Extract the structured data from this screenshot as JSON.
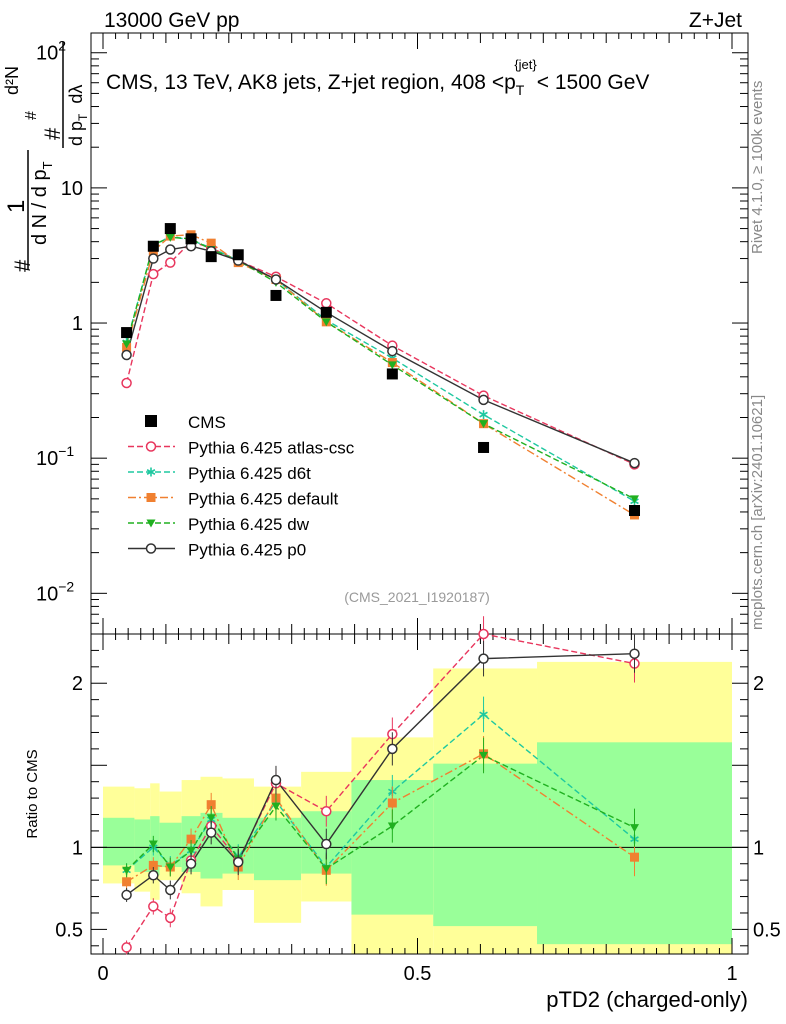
{
  "header": {
    "left": "13000 GeV pp",
    "right": "Z+Jet"
  },
  "side": {
    "rivet": "Rivet 4.1.0, ≥ 100k events",
    "mcplots": "mcplots.cern.ch [arXiv:2401.10621]"
  },
  "chart_data": {
    "type": "line",
    "title": "CMS, 13 TeV, AK8 jets, Z+jet region, 408 <p_T^{jet}< 1500 GeV",
    "title_parts": {
      "pre": "CMS, 13 TeV, AK8 jets, Z+jet region, 408 <p",
      "sub": "T",
      "sup": "{jet}",
      "post": "< 1500 GeV"
    },
    "watermark": "(CMS_2021_I1920187)",
    "xlabel": "pTD2 (charged-only)",
    "ylabel_ratio": "Ratio to CMS",
    "ylabel_main_parts": {
      "hash": "#",
      "one": "1",
      "dN": "d N / d p",
      "T": "T",
      "d2N": "d²N",
      "dpT": "d p",
      "dlambda": "dλ"
    },
    "xlim": [
      0,
      1
    ],
    "ylim_main": [
      0.005,
      140
    ],
    "ylim_ratio": [
      0.35,
      2.3
    ],
    "x_ticks": [
      "0",
      "0.5",
      "1"
    ],
    "y_ticks_main": [
      {
        "v": 0.01,
        "b": "10",
        "e": "−2"
      },
      {
        "v": 0.1,
        "b": "10",
        "e": "−1"
      },
      {
        "v": 1,
        "b": "1",
        "e": ""
      },
      {
        "v": 10,
        "b": "10",
        "e": ""
      },
      {
        "v": 100,
        "b": "10",
        "e": "2"
      }
    ],
    "y_ticks_ratio": [
      {
        "v": 0.5,
        "t": "0.5"
      },
      {
        "v": 1,
        "t": "1"
      },
      {
        "v": 2,
        "t": "2"
      }
    ],
    "x": [
      0.0375,
      0.08,
      0.107,
      0.14,
      0.172,
      0.215,
      0.275,
      0.355,
      0.46,
      0.605,
      0.845
    ],
    "cms": [
      0.85,
      3.7,
      5.0,
      4.2,
      3.1,
      3.2,
      1.6,
      1.2,
      0.42,
      0.12,
      0.041
    ],
    "series": [
      {
        "name": "Pythia 6.425 atlas-csc",
        "color": "#e8365d",
        "marker": "circle-open",
        "dash": "6,3",
        "values": [
          0.36,
          2.3,
          2.8,
          4.0,
          3.6,
          2.9,
          2.2,
          1.4,
          0.68,
          0.29,
          0.09
        ],
        "ratio": [
          0.39,
          0.64,
          0.57,
          0.92,
          1.13,
          0.92,
          1.39,
          1.22,
          1.69,
          2.38,
          2.12
        ]
      },
      {
        "name": "Pythia 6.425 d6t",
        "color": "#1ec8a0",
        "marker": "star",
        "dash": "6,3",
        "values": [
          0.72,
          3.7,
          4.4,
          4.1,
          3.6,
          2.9,
          2.1,
          1.05,
          0.55,
          0.21,
          0.048
        ],
        "ratio": [
          0.86,
          1.0,
          0.89,
          0.98,
          1.17,
          0.94,
          1.28,
          0.88,
          1.34,
          1.81,
          1.05
        ]
      },
      {
        "name": "Pythia 6.425 default",
        "color": "#f08030",
        "marker": "square",
        "dash": "8,3,2,3",
        "values": [
          0.66,
          3.4,
          4.4,
          4.5,
          3.9,
          2.8,
          2.1,
          1.02,
          0.51,
          0.18,
          0.038
        ],
        "ratio": [
          0.79,
          0.89,
          0.88,
          1.05,
          1.26,
          0.88,
          1.3,
          0.86,
          1.27,
          1.57,
          0.94
        ]
      },
      {
        "name": "Pythia 6.425 dw",
        "color": "#20b020",
        "marker": "triangle-down",
        "dash": "6,3",
        "values": [
          0.7,
          3.8,
          4.3,
          4.2,
          3.5,
          2.9,
          2.0,
          1.02,
          0.49,
          0.18,
          0.05
        ],
        "ratio": [
          0.86,
          1.02,
          0.88,
          0.98,
          1.18,
          0.93,
          1.25,
          0.87,
          1.13,
          1.56,
          1.12
        ]
      },
      {
        "name": "Pythia 6.425 p0",
        "color": "#333333",
        "marker": "circle-open",
        "dash": "",
        "values": [
          0.58,
          3.0,
          3.5,
          3.7,
          3.4,
          2.9,
          2.1,
          1.2,
          0.62,
          0.27,
          0.092
        ],
        "ratio": [
          0.71,
          0.83,
          0.74,
          0.9,
          1.09,
          0.91,
          1.41,
          1.02,
          1.6,
          2.15,
          2.18
        ]
      }
    ],
    "ratio_band": {
      "edges": [
        0,
        0.05,
        0.075,
        0.09,
        0.125,
        0.155,
        0.19,
        0.24,
        0.315,
        0.395,
        0.525,
        0.69,
        1.0
      ],
      "yellow_lo": [
        0.78,
        0.73,
        0.68,
        0.8,
        0.72,
        0.64,
        0.74,
        0.54,
        0.67,
        0.35,
        0.35,
        0.35
      ],
      "yellow_hi": [
        1.37,
        1.36,
        1.39,
        1.34,
        1.41,
        1.43,
        1.42,
        1.37,
        1.46,
        1.67,
        2.09,
        2.13
      ],
      "green_lo": [
        0.89,
        0.85,
        0.83,
        0.88,
        0.85,
        0.81,
        0.84,
        0.8,
        0.84,
        0.59,
        0.52,
        0.41
      ],
      "green_hi": [
        1.18,
        1.17,
        1.19,
        1.15,
        1.19,
        1.21,
        1.18,
        1.18,
        1.22,
        1.41,
        1.51,
        1.64
      ]
    }
  }
}
